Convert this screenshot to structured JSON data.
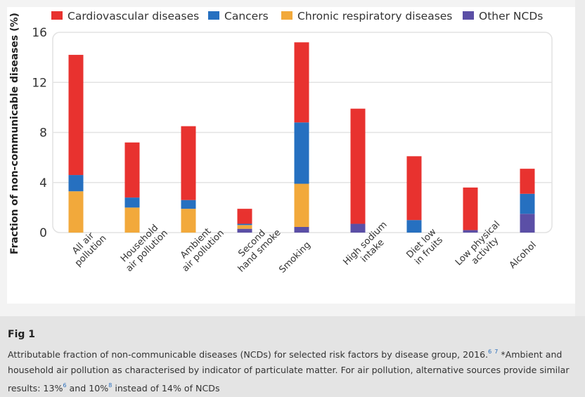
{
  "chart_data": {
    "type": "bar",
    "stacked": true,
    "title": "",
    "xlabel": "",
    "ylabel": "Fraction of non-communicable diseases (%)",
    "ylim": [
      0,
      16
    ],
    "yticks": [
      0,
      4,
      8,
      12,
      16
    ],
    "grid": true,
    "legend_position": "top",
    "categories": [
      [
        "All air",
        "pollution"
      ],
      [
        "Household",
        "air pollution"
      ],
      [
        "Ambient",
        "air pollution"
      ],
      [
        "Second",
        "hand smoke"
      ],
      [
        "Smoking"
      ],
      [
        "High sodium",
        "intake"
      ],
      [
        "Diet low",
        "in fruits"
      ],
      [
        "Low physical",
        "activity"
      ],
      [
        "Alcohol"
      ]
    ],
    "series": [
      {
        "name": "Other NCDs",
        "color": "#5b4fa6",
        "values": [
          0,
          0,
          0,
          0.3,
          0.45,
          0.7,
          0,
          0.2,
          1.5
        ]
      },
      {
        "name": "Chronic respiratory diseases",
        "color": "#f2a93b",
        "values": [
          3.3,
          2.0,
          1.9,
          0.3,
          3.45,
          0,
          0,
          0,
          0
        ]
      },
      {
        "name": "Cancers",
        "color": "#2670c0",
        "values": [
          1.3,
          0.8,
          0.7,
          0.1,
          4.9,
          0,
          1.0,
          0,
          1.6
        ]
      },
      {
        "name": "Cardiovascular diseases",
        "color": "#e8322f",
        "values": [
          9.6,
          4.4,
          5.9,
          1.2,
          6.4,
          9.2,
          5.1,
          3.4,
          2.0
        ]
      }
    ],
    "legend_order": [
      "Cardiovascular diseases",
      "Cancers",
      "Chronic respiratory diseases",
      "Other NCDs"
    ]
  },
  "caption": {
    "fig_label": "Fig 1",
    "line1_a": "Attributable fraction of non-communicable diseases (NCDs) for selected risk factors by disease group, 2016.",
    "ref1": "6",
    "ref2": "7",
    "line1_b": "  *Ambient and household air pollution as characterised by indicator of particulate matter. For air pollution, alternative sources provide similar results: 13%",
    "ref3": "6",
    "mid": "  and 10%",
    "ref4": "8",
    "end": "  instead of 14% of NCDs"
  }
}
